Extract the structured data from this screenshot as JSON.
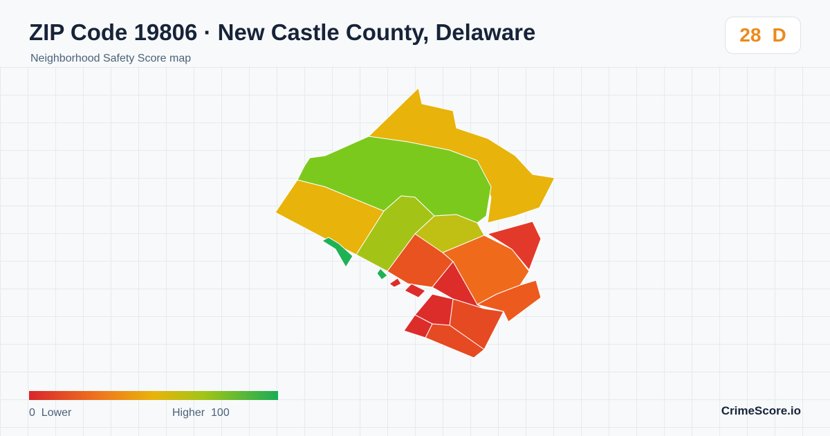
{
  "header": {
    "title": "ZIP Code 19806 · New Castle County, Delaware",
    "subtitle": "Neighborhood Safety Score map"
  },
  "score": {
    "value": "28",
    "grade": "D"
  },
  "legend": {
    "min": "0",
    "min_label": "Lower",
    "max_label": "Higher",
    "max": "100"
  },
  "brand": "CrimeScore.io"
}
